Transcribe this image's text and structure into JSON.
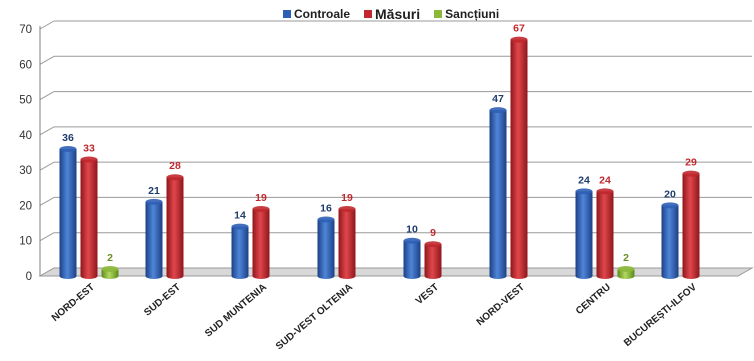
{
  "chart_data": {
    "type": "bar",
    "title": "",
    "xlabel": "",
    "ylabel": "",
    "ylim": [
      0,
      70
    ],
    "yticks": [
      "0",
      "10",
      "20",
      "30",
      "40",
      "50",
      "60",
      "70"
    ],
    "grid": true,
    "legend_position": "top",
    "categories": [
      "NORD-EST",
      "SUD-EST",
      "SUD MUNTENIA",
      "SUD-VEST OLTENIA",
      "VEST",
      "NORD-VEST",
      "CENTRU",
      "BUCUREȘTI-ILFOV"
    ],
    "series": [
      {
        "name": "Controale",
        "color": "#2f5fb5",
        "label_color": "#1f3c6e",
        "values": [
          36,
          21,
          14,
          16,
          10,
          47,
          24,
          20
        ]
      },
      {
        "name": "Măsuri",
        "color": "#c0282d",
        "label_color": "#c0282d",
        "values": [
          33,
          28,
          19,
          19,
          9,
          67,
          24,
          29
        ]
      },
      {
        "name": "Sancțiuni",
        "color": "#8cb83a",
        "label_color": "#6a8f24",
        "values": [
          2,
          null,
          null,
          null,
          null,
          null,
          2,
          null
        ]
      }
    ]
  }
}
